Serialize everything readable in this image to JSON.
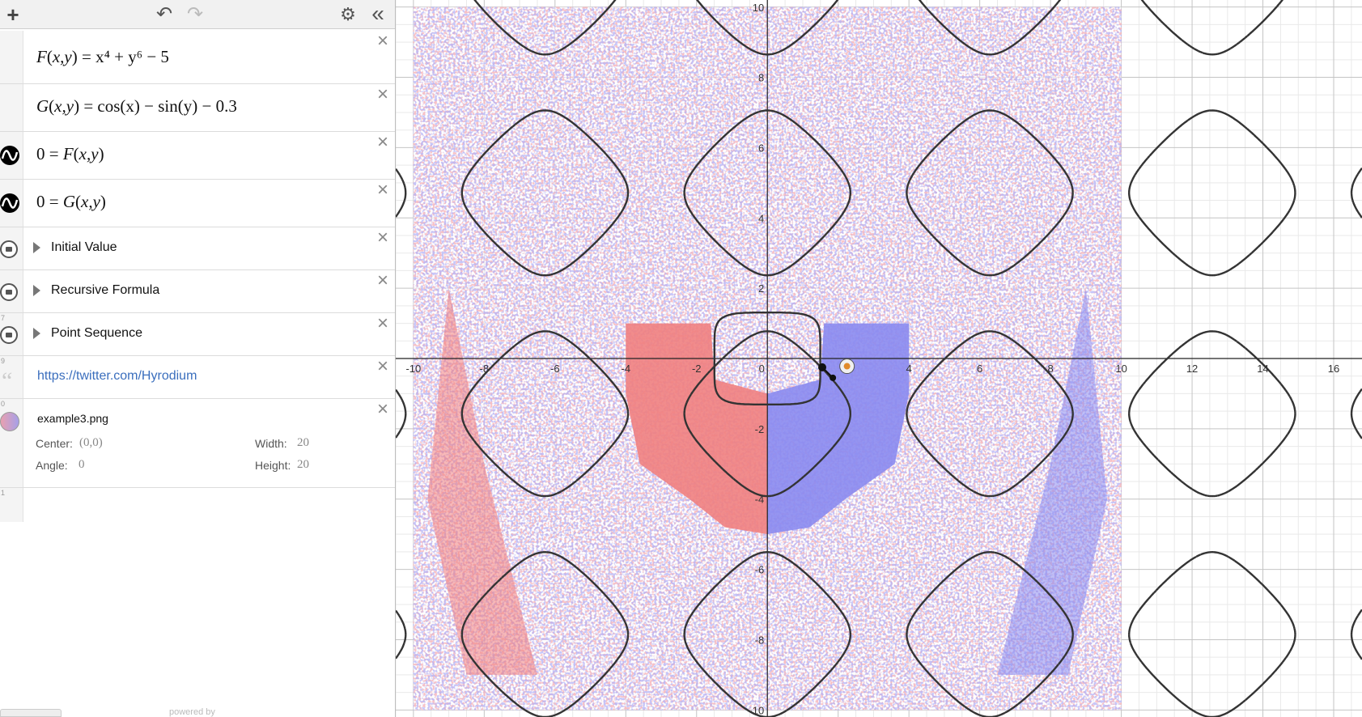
{
  "toolbar": {
    "add_symbol": "+",
    "undo_symbol": "↶",
    "redo_symbol": "↷",
    "settings_symbol": "⚙",
    "collapse_symbol": "«"
  },
  "expressions": [
    {
      "row": "",
      "type": "function",
      "name": "F",
      "args": "x,y",
      "rhs": "= x⁴ + y⁶ − 5"
    },
    {
      "row": "",
      "type": "function",
      "name": "G",
      "args": "x,y",
      "rhs": "= cos(x) − sin(y) − 0.3"
    },
    {
      "row": "",
      "type": "implicit",
      "lhs": "0 = ",
      "fn": "F",
      "args": "x,y"
    },
    {
      "row": "",
      "type": "implicit",
      "lhs": "0 = ",
      "fn": "G",
      "args": "x,y"
    }
  ],
  "folders": [
    {
      "row": "",
      "label": "Initial Value"
    },
    {
      "row": "",
      "label": "Recursive Formula"
    },
    {
      "row": "7",
      "label": "Point Sequence"
    }
  ],
  "note": {
    "row": "9",
    "text": "https://twitter.com/Hyrodium",
    "color": "#3a6ebd"
  },
  "image": {
    "row": "0",
    "filename": "example3.png",
    "center_label": "Center:",
    "center_value": "(0,0)",
    "width_label": "Width:",
    "width_value": "20",
    "angle_label": "Angle:",
    "angle_value": "0",
    "height_label": "Height:",
    "height_value": "20"
  },
  "empty_row": {
    "row": "1"
  },
  "footer": {
    "powered_by": "powered by"
  },
  "graph": {
    "x_ticks": [
      "-10",
      "-8",
      "-6",
      "-4",
      "-2",
      "0",
      "4",
      "6",
      "8",
      "10",
      "12",
      "14",
      "16"
    ],
    "y_ticks": [
      "10",
      "8",
      "6",
      "4",
      "2",
      "-2",
      "-4",
      "-6",
      "-8",
      "-10"
    ],
    "x_range": [
      -10.5,
      16.8
    ],
    "y_range": [
      -10.2,
      10.2
    ],
    "image_extent": {
      "center": [
        0,
        0
      ],
      "width": 20,
      "height": 20
    },
    "image_colors": {
      "red": "#f08080",
      "blue": "#8a8af0"
    },
    "curve_color": "#333333"
  }
}
